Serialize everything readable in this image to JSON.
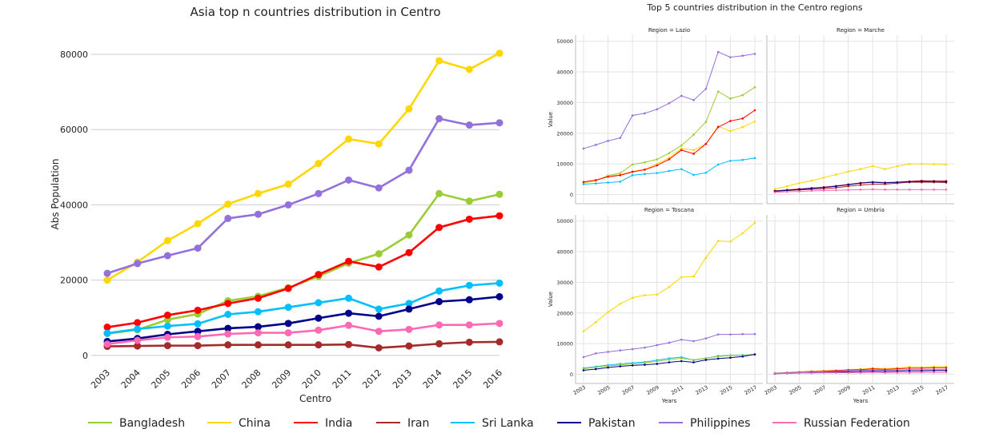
{
  "colors": {
    "Bangladesh": "#9acd32",
    "China": "#ffd700",
    "India": "#ff0000",
    "Iran": "#a52a2a",
    "Sri Lanka": "#00bfff",
    "Pakistan": "#00008b",
    "Philippines": "#9370db",
    "Russian Federation": "#ff69b4"
  },
  "legend": [
    "Bangladesh",
    "China",
    "India",
    "Iran",
    "Sri Lanka",
    "Pakistan",
    "Philippines",
    "Russian Federation"
  ],
  "chart_data": [
    {
      "type": "line",
      "title": "Asia top n countries distribution in Centro",
      "xlabel": "Centro",
      "ylabel": "Abs Population",
      "x": [
        2003,
        2004,
        2005,
        2006,
        2007,
        2008,
        2009,
        2010,
        2011,
        2012,
        2013,
        2014,
        2015,
        2016
      ],
      "xlim": [
        2003,
        2016
      ],
      "ylim": [
        -3000,
        87000
      ],
      "yticks": [
        0,
        20000,
        40000,
        60000,
        80000
      ],
      "grid": "horizontal",
      "series": [
        {
          "name": "Bangladesh",
          "values": [
            5800,
            6800,
            9500,
            11000,
            14500,
            15700,
            18000,
            21000,
            24500,
            27000,
            32000,
            43000,
            41000,
            42800
          ]
        },
        {
          "name": "China",
          "values": [
            20000,
            24800,
            30500,
            35000,
            40200,
            43000,
            45500,
            51000,
            57500,
            56200,
            65500,
            78300,
            76000,
            80300
          ]
        },
        {
          "name": "India",
          "values": [
            7500,
            8700,
            10700,
            12000,
            13800,
            15200,
            17800,
            21500,
            25000,
            23500,
            27300,
            34000,
            36200,
            37100
          ]
        },
        {
          "name": "Iran",
          "values": [
            2400,
            2500,
            2600,
            2600,
            2800,
            2800,
            2800,
            2800,
            2900,
            2000,
            2500,
            3100,
            3500,
            3600
          ]
        },
        {
          "name": "Sri Lanka",
          "values": [
            5900,
            7000,
            7800,
            8400,
            10900,
            11600,
            12800,
            14000,
            15200,
            12300,
            13800,
            17100,
            18600,
            19200
          ]
        },
        {
          "name": "Pakistan",
          "values": [
            3700,
            4500,
            5600,
            6400,
            7200,
            7600,
            8500,
            9900,
            11200,
            10400,
            12300,
            14300,
            14800,
            15600
          ]
        },
        {
          "name": "Philippines",
          "values": [
            21800,
            24400,
            26500,
            28500,
            36400,
            37500,
            40000,
            43000,
            46600,
            44500,
            49200,
            62900,
            61200,
            61800
          ]
        },
        {
          "name": "Russian Federation",
          "values": [
            3000,
            4000,
            4800,
            5000,
            5700,
            6000,
            6000,
            6700,
            8000,
            6400,
            6900,
            8100,
            8100,
            8500
          ]
        }
      ]
    },
    {
      "type": "line",
      "title": "Top 5 countries distribution in the Centro regions",
      "panels": [
        {
          "title": "Region = Lazio",
          "x": [
            2003,
            2004,
            2005,
            2006,
            2007,
            2008,
            2009,
            2010,
            2011,
            2012,
            2013,
            2014,
            2015,
            2016,
            2017
          ],
          "series": [
            {
              "name": "Bangladesh",
              "values": [
                3800,
                4500,
                6200,
                7000,
                9800,
                10500,
                11500,
                13500,
                16000,
                19500,
                23700,
                33600,
                31300,
                32400,
                35000
              ]
            },
            {
              "name": "China",
              "values": [
                3900,
                4600,
                5900,
                6500,
                7500,
                8200,
                10000,
                12000,
                15000,
                14500,
                16500,
                22300,
                20700,
                22000,
                23800
              ]
            },
            {
              "name": "India",
              "values": [
                4100,
                4700,
                5800,
                6300,
                7400,
                8100,
                9500,
                11500,
                14500,
                13300,
                16500,
                22000,
                24000,
                24800,
                27500
              ]
            },
            {
              "name": "Sri Lanka",
              "values": [
                3400,
                3600,
                3900,
                4200,
                6300,
                6700,
                7000,
                7700,
                8300,
                6400,
                7100,
                9800,
                11000,
                11300,
                11900
              ]
            },
            {
              "name": "Philippines",
              "values": [
                15000,
                16200,
                17500,
                18500,
                25800,
                26500,
                27800,
                29800,
                32200,
                30800,
                34500,
                46500,
                44800,
                45300,
                45900
              ]
            }
          ]
        },
        {
          "title": "Region = Marche",
          "x": [
            2003,
            2004,
            2005,
            2006,
            2007,
            2008,
            2009,
            2010,
            2011,
            2012,
            2013,
            2014,
            2015,
            2016,
            2017
          ],
          "series": [
            {
              "name": "China",
              "values": [
                1800,
                2700,
                3700,
                4500,
                5500,
                6500,
                7500,
                8300,
                9300,
                8300,
                9200,
                10000,
                10000,
                9900,
                9800
              ]
            },
            {
              "name": "India",
              "values": [
                1200,
                1500,
                1800,
                2100,
                2400,
                2800,
                3300,
                3800,
                4100,
                3900,
                4000,
                4300,
                4500,
                4400,
                4400
              ]
            },
            {
              "name": "Iran",
              "values": [
                1000,
                1300,
                1500,
                1700,
                1900,
                2200,
                2700,
                3100,
                3400,
                3400,
                3700,
                4000,
                4000,
                4000,
                3900
              ]
            },
            {
              "name": "Pakistan",
              "values": [
                1100,
                1400,
                1700,
                2000,
                2300,
                2700,
                3200,
                3700,
                4000,
                3800,
                4000,
                4200,
                4300,
                4300,
                4200
              ]
            },
            {
              "name": "Russian Federation",
              "values": [
                700,
                900,
                1000,
                1200,
                1300,
                1400,
                1500,
                1600,
                1700,
                1600,
                1600,
                1600,
                1600,
                1600,
                1600
              ]
            }
          ]
        },
        {
          "title": "Region = Toscana",
          "x": [
            2003,
            2004,
            2005,
            2006,
            2007,
            2008,
            2009,
            2010,
            2011,
            2012,
            2013,
            2014,
            2015,
            2016,
            2017
          ],
          "series": [
            {
              "name": "China",
              "values": [
                14000,
                17000,
                20300,
                23000,
                25000,
                25800,
                26000,
                28500,
                31700,
                31900,
                38000,
                43500,
                43300,
                46000,
                49500
              ]
            },
            {
              "name": "Philippines",
              "values": [
                5600,
                6800,
                7300,
                7800,
                8200,
                8700,
                9500,
                10300,
                11300,
                10800,
                11700,
                13000,
                13000,
                13100,
                13100
              ]
            },
            {
              "name": "Sri Lanka",
              "values": [
                2000,
                2500,
                3000,
                3400,
                3700,
                4000,
                4600,
                5200,
                5600,
                4600,
                5200,
                6000,
                6200,
                6300,
                6400
              ]
            },
            {
              "name": "Bangladesh",
              "values": [
                1800,
                2300,
                2700,
                3100,
                3400,
                3700,
                4200,
                4800,
                5200,
                4700,
                5300,
                5800,
                6100,
                6200,
                6500
              ]
            },
            {
              "name": "Pakistan",
              "values": [
                1300,
                1700,
                2200,
                2600,
                2900,
                3100,
                3400,
                3900,
                4300,
                3900,
                4700,
                5100,
                5400,
                5800,
                6500
              ]
            }
          ]
        },
        {
          "title": "Region = Umbria",
          "x": [
            2003,
            2004,
            2005,
            2006,
            2007,
            2008,
            2009,
            2010,
            2011,
            2012,
            2013,
            2014,
            2015,
            2016,
            2017
          ],
          "series": [
            {
              "name": "China",
              "values": [
                400,
                600,
                800,
                1000,
                1200,
                1300,
                1500,
                1700,
                2000,
                1800,
                2100,
                2400,
                2300,
                2500,
                2500
              ]
            },
            {
              "name": "India",
              "values": [
                300,
                500,
                700,
                900,
                1000,
                1200,
                1400,
                1500,
                1800,
                1600,
                1800,
                2000,
                2000,
                2100,
                2100
              ]
            },
            {
              "name": "Philippines",
              "values": [
                400,
                500,
                700,
                800,
                900,
                1000,
                1200,
                1300,
                1400,
                1300,
                1400,
                1500,
                1500,
                1500,
                1500
              ]
            },
            {
              "name": "Pakistan",
              "values": [
                200,
                300,
                400,
                500,
                600,
                700,
                800,
                900,
                1000,
                900,
                1000,
                1100,
                1100,
                1200,
                1200
              ]
            },
            {
              "name": "Russian Federation",
              "values": [
                300,
                300,
                400,
                400,
                500,
                500,
                500,
                500,
                600,
                500,
                500,
                500,
                600,
                600,
                600
              ]
            }
          ]
        }
      ],
      "xlabel": "Years",
      "ylabel": "Value",
      "ylim": [
        -3000,
        52000
      ],
      "yticks": [
        0,
        10000,
        20000,
        30000,
        40000,
        50000
      ],
      "xticks": [
        2003,
        2005,
        2007,
        2009,
        2011,
        2013,
        2015,
        2017
      ],
      "grid": "both"
    }
  ]
}
